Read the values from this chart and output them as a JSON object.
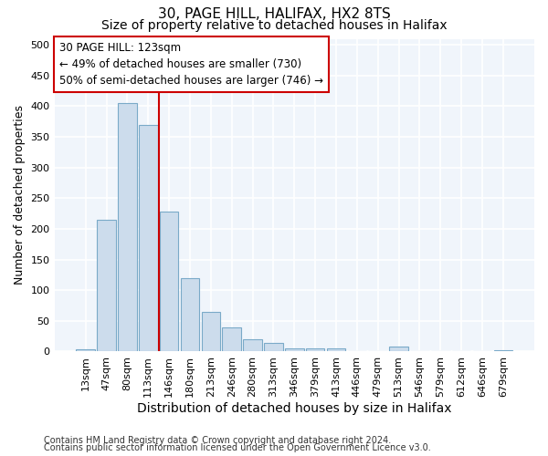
{
  "title_line1": "30, PAGE HILL, HALIFAX, HX2 8TS",
  "title_line2": "Size of property relative to detached houses in Halifax",
  "xlabel": "Distribution of detached houses by size in Halifax",
  "ylabel": "Number of detached properties",
  "categories": [
    "13sqm",
    "47sqm",
    "80sqm",
    "113sqm",
    "146sqm",
    "180sqm",
    "213sqm",
    "246sqm",
    "280sqm",
    "313sqm",
    "346sqm",
    "379sqm",
    "413sqm",
    "446sqm",
    "479sqm",
    "513sqm",
    "546sqm",
    "579sqm",
    "612sqm",
    "646sqm",
    "679sqm"
  ],
  "values": [
    3,
    215,
    405,
    370,
    228,
    120,
    65,
    39,
    20,
    14,
    5,
    5,
    5,
    1,
    1,
    8,
    1,
    0,
    0,
    0,
    2
  ],
  "bar_color": "#ccdcec",
  "bar_edge_color": "#7aaac8",
  "vline_color": "#cc0000",
  "vline_x_index": 3.5,
  "annotation_text": "30 PAGE HILL: 123sqm\n← 49% of detached houses are smaller (730)\n50% of semi-detached houses are larger (746) →",
  "annotation_box_color": "#ffffff",
  "annotation_box_edge": "#cc0000",
  "footnote1": "Contains HM Land Registry data © Crown copyright and database right 2024.",
  "footnote2": "Contains public sector information licensed under the Open Government Licence v3.0.",
  "ylim": [
    0,
    510
  ],
  "yticks": [
    0,
    50,
    100,
    150,
    200,
    250,
    300,
    350,
    400,
    450,
    500
  ],
  "fig_bg": "#ffffff",
  "plot_bg": "#f0f5fb",
  "grid_color": "#ffffff",
  "title1_fontsize": 11,
  "title2_fontsize": 10,
  "xlabel_fontsize": 10,
  "ylabel_fontsize": 9,
  "tick_fontsize": 8,
  "annot_fontsize": 8.5,
  "footnote_fontsize": 7
}
